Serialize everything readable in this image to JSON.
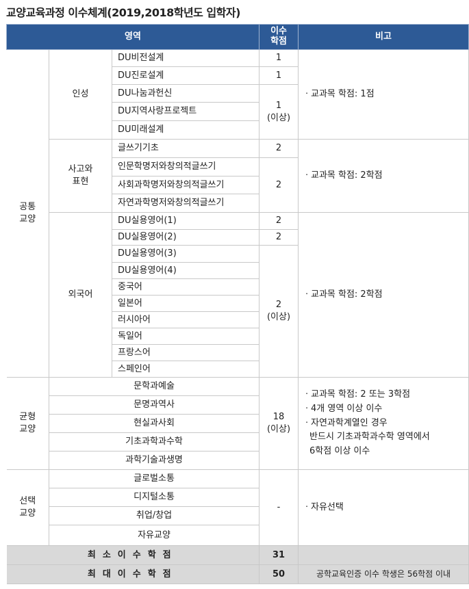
{
  "title": "교양교육과정 이수체계(2019,2018학년도 입학자)",
  "header": {
    "area": "영역",
    "credit_line1": "이수",
    "credit_line2": "학점",
    "note": "비고"
  },
  "common": {
    "label_line1": "공통",
    "label_line2": "교양",
    "insung": {
      "label": "인성",
      "courses": [
        "DU비전설계",
        "DU진로설계",
        "DU나눔과헌신",
        "DU지역사랑프로젝트",
        "DU미래설계"
      ],
      "credits": [
        "1",
        "1",
        "1"
      ],
      "credit_suffix": "(이상)",
      "note": "ㆍ교과목 학점: 1점"
    },
    "sago": {
      "label_line1": "사고와",
      "label_line2": "표현",
      "courses": [
        "글쓰기기초",
        "인문학명저와창의적글쓰기",
        "사회과학명저와창의적글쓰기",
        "자연과학명저와창의적글쓰기"
      ],
      "credits": [
        "2",
        "2"
      ],
      "note": "ㆍ교과목 학점: 2학점"
    },
    "foreign": {
      "label": "외국어",
      "courses": [
        "DU실용영어(1)",
        "DU실용영어(2)",
        "DU실용영어(3)",
        "DU실용영어(4)",
        "중국어",
        "일본어",
        "러시아어",
        "독일어",
        "프랑스어",
        "스페인어"
      ],
      "credits": [
        "2",
        "2",
        "2"
      ],
      "credit_suffix": "(이상)",
      "note": "ㆍ교과목 학점: 2학점"
    }
  },
  "balance": {
    "label_line1": "균형",
    "label_line2": "교양",
    "courses": [
      "문학과예술",
      "문명과역사",
      "현실과사회",
      "기초과학과수학",
      "과학기술과생명"
    ],
    "credit": "18",
    "credit_suffix": "(이상)",
    "notes": [
      "ㆍ교과목 학점: 2 또는 3학점",
      "ㆍ4개 영역 이상 이수",
      "ㆍ자연과학계열인 경우",
      "반드시 기초과학과수학 영역에서",
      "6학점 이상 이수"
    ]
  },
  "elective": {
    "label_line1": "선택",
    "label_line2": "교양",
    "courses": [
      "글로벌소통",
      "디지털소통",
      "취업/창업",
      "자유교양"
    ],
    "credit": "-",
    "note": "ㆍ자유선택"
  },
  "summary": [
    {
      "label": "최소이수학점",
      "credit": "31",
      "note": ""
    },
    {
      "label": "최대이수학점",
      "credit": "50",
      "note": "공학교육인증 이수 학생은 56학점 이내"
    }
  ]
}
